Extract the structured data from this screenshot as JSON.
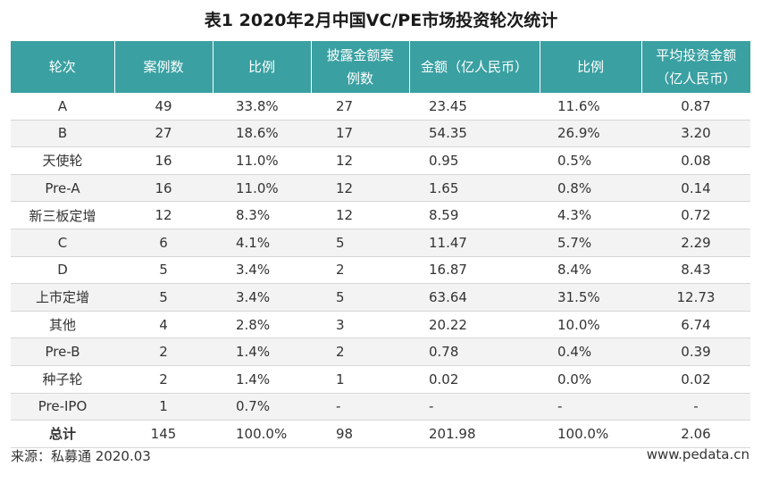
{
  "title": "表1 2020年2月中国VC/PE市场投资轮次统计",
  "headers": [
    [
      "轮次"
    ],
    [
      "案例数"
    ],
    [
      "比例"
    ],
    [
      "披露金额案",
      "例数"
    ],
    [
      "金额（亿人民币）"
    ],
    [
      "比例"
    ],
    [
      "平均投资金额",
      "（亿人民币）"
    ]
  ],
  "rows": [
    [
      "A",
      "49",
      "33.8%",
      "27",
      "23.45",
      "11.6%",
      "0.87"
    ],
    [
      "B",
      "27",
      "18.6%",
      "17",
      "54.35",
      "26.9%",
      "3.20"
    ],
    [
      "天使轮",
      "16",
      "11.0%",
      "12",
      "0.95",
      "0.5%",
      "0.08"
    ],
    [
      "Pre-A",
      "16",
      "11.0%",
      "12",
      "1.65",
      "0.8%",
      "0.14"
    ],
    [
      "新三板定增",
      "12",
      "8.3%",
      "12",
      "8.59",
      "4.3%",
      "0.72"
    ],
    [
      "C",
      "6",
      "4.1%",
      "5",
      "11.47",
      "5.7%",
      "2.29"
    ],
    [
      "D",
      "5",
      "3.4%",
      "2",
      "16.87",
      "8.4%",
      "8.43"
    ],
    [
      "上市定增",
      "5",
      "3.4%",
      "5",
      "63.64",
      "31.5%",
      "12.73"
    ],
    [
      "其他",
      "4",
      "2.8%",
      "3",
      "20.22",
      "10.0%",
      "6.74"
    ],
    [
      "Pre-B",
      "2",
      "1.4%",
      "2",
      "0.78",
      "0.4%",
      "0.39"
    ],
    [
      "种子轮",
      "2",
      "1.4%",
      "1",
      "0.02",
      "0.0%",
      "0.02"
    ],
    [
      "Pre-IPO",
      "1",
      "0.7%",
      "-",
      "-",
      "-",
      "-"
    ]
  ],
  "total": [
    "总计",
    "145",
    "100.0%",
    "98",
    "201.98",
    "100.0%",
    "2.06"
  ],
  "source": "来源：私募通 2020.03",
  "website": "www.pedata.cn",
  "colors": {
    "header_bg": "#3aa0a2",
    "stripe_bg": "#f3f3f3"
  }
}
